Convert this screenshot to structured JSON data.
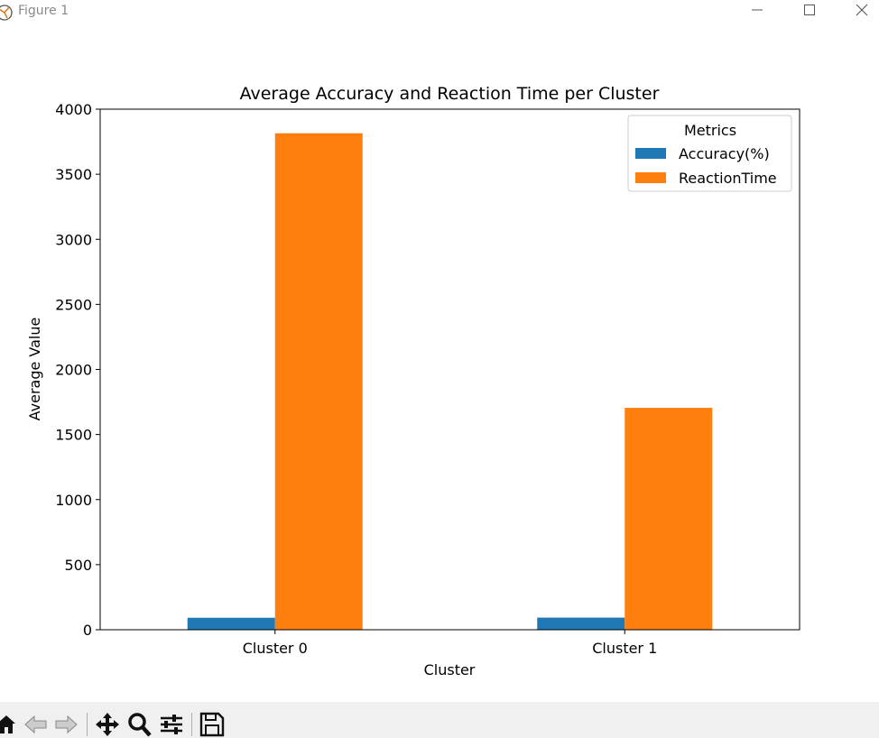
{
  "window": {
    "title": "Figure 1",
    "icons": {
      "app": "matplotlib-icon",
      "minimize": "minimize-icon",
      "maximize": "maximize-icon",
      "close": "close-icon"
    }
  },
  "toolbar": {
    "tools": [
      "home-icon",
      "back-arrow-icon",
      "forward-arrow-icon",
      "pan-move-icon",
      "zoom-magnifier-icon",
      "configure-subplots-icon",
      "save-floppy-icon"
    ]
  },
  "chart_data": {
    "type": "bar",
    "title": "Average Accuracy and Reaction Time per Cluster",
    "xlabel": "Cluster",
    "ylabel": "Average Value",
    "categories": [
      "Cluster 0",
      "Cluster 1"
    ],
    "series": [
      {
        "name": "Accuracy(%)",
        "values": [
          92,
          93
        ],
        "color": "#1f77b4"
      },
      {
        "name": "ReactionTime",
        "values": [
          3815,
          1705
        ],
        "color": "#ff7f0e"
      }
    ],
    "ylim": [
      0,
      4000
    ],
    "yticks": [
      0,
      500,
      1000,
      1500,
      2000,
      2500,
      3000,
      3500,
      4000
    ],
    "legend": {
      "title": "Metrics",
      "placement": "top-right"
    },
    "grid": false
  }
}
